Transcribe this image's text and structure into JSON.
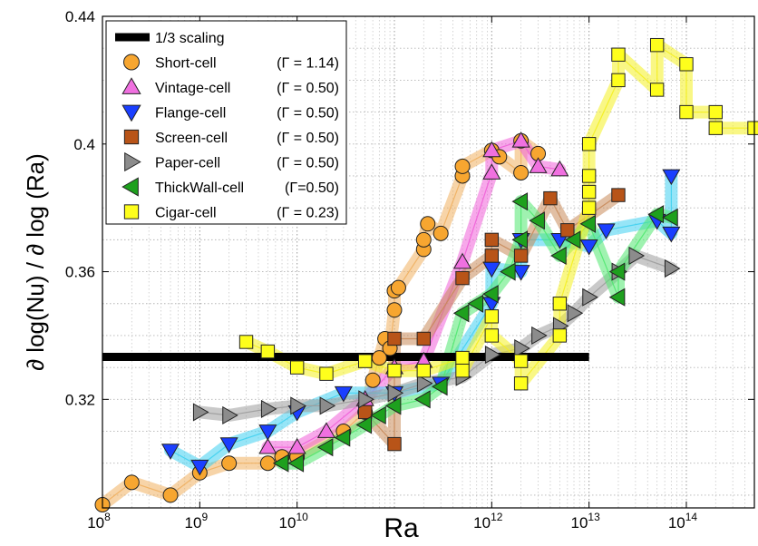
{
  "chart_data": {
    "type": "scatter",
    "xlabel": "Ra",
    "ylabel": "∂ log(Nu) / ∂ log (Ra)",
    "x_scale": "log",
    "xlim": [
      100000000.0,
      500000000000000.0
    ],
    "ylim": [
      0.286,
      0.44
    ],
    "x_ticks": [
      {
        "value": 100000000.0,
        "base": "10",
        "exp": "8"
      },
      {
        "value": 1000000000.0,
        "base": "10",
        "exp": "9"
      },
      {
        "value": 10000000000.0,
        "base": "10",
        "exp": "10"
      },
      {
        "value": 1000000000000.0,
        "base": "10",
        "exp": "12"
      },
      {
        "value": 10000000000000.0,
        "base": "10",
        "exp": "13"
      },
      {
        "value": 100000000000000.0,
        "base": "10",
        "exp": "14"
      }
    ],
    "y_ticks": [
      {
        "value": 0.32,
        "label": "0.32"
      },
      {
        "value": 0.36,
        "label": "0.36"
      },
      {
        "value": 0.4,
        "label": "0.4"
      },
      {
        "value": 0.44,
        "label": "0.44"
      }
    ],
    "grid": true,
    "legend_position": "top-left",
    "reference_line": {
      "name": "1/3 scaling",
      "y": 0.3333,
      "x_range": [
        100000000.0,
        10000000000000.0
      ],
      "color": "#000000"
    },
    "series": [
      {
        "name": "Short-cell",
        "gamma": "(Γ = 1.14)",
        "marker": "circle",
        "color": "#f7a630",
        "band_color": "#f0b060",
        "points": [
          [
            100000000.0,
            0.287
          ],
          [
            200000000.0,
            0.294
          ],
          [
            500000000.0,
            0.29
          ],
          [
            1000000000.0,
            0.297
          ],
          [
            2000000000.0,
            0.3
          ],
          [
            5000000000.0,
            0.3
          ],
          [
            7000000000.0,
            0.302
          ],
          [
            10000000000.0,
            0.302
          ],
          [
            30000000000.0,
            0.31
          ],
          [
            50000000000.0,
            0.316
          ],
          [
            60000000000.0,
            0.326
          ],
          [
            70000000000.0,
            0.333
          ],
          [
            80000000000.0,
            0.339
          ],
          [
            90000000000.0,
            0.336
          ],
          [
            100000000000.0,
            0.348
          ],
          [
            100000000000.0,
            0.354
          ],
          [
            110000000000.0,
            0.355
          ],
          [
            200000000000.0,
            0.367
          ],
          [
            200000000000.0,
            0.37
          ],
          [
            220000000000.0,
            0.375
          ],
          [
            300000000000.0,
            0.372
          ],
          [
            500000000000.0,
            0.39
          ],
          [
            500000000000.0,
            0.393
          ],
          [
            1000000000000.0,
            0.398
          ],
          [
            1200000000000.0,
            0.396
          ],
          [
            2000000000000.0,
            0.391
          ],
          [
            2000000000000.0,
            0.401
          ],
          [
            3000000000000.0,
            0.397
          ]
        ]
      },
      {
        "name": "Vintage-cell",
        "gamma": "(Γ = 0.50)",
        "marker": "triangle-up",
        "color": "#f070e0",
        "band_color": "#f060d8",
        "points": [
          [
            5000000000.0,
            0.305
          ],
          [
            10000000000.0,
            0.305
          ],
          [
            20000000000.0,
            0.31
          ],
          [
            50000000000.0,
            0.32
          ],
          [
            100000000000.0,
            0.33
          ],
          [
            200000000000.0,
            0.332
          ],
          [
            500000000000.0,
            0.363
          ],
          [
            1000000000000.0,
            0.391
          ],
          [
            1000000000000.0,
            0.398
          ],
          [
            2000000000000.0,
            0.401
          ],
          [
            3000000000000.0,
            0.393
          ],
          [
            5000000000000.0,
            0.392
          ]
        ]
      },
      {
        "name": "Flange-cell",
        "gamma": "(Γ = 0.50)",
        "marker": "triangle-down",
        "color": "#1a3fff",
        "band_color": "#40d0f0",
        "points": [
          [
            500000000.0,
            0.304
          ],
          [
            1000000000.0,
            0.299
          ],
          [
            2000000000.0,
            0.306
          ],
          [
            5000000000.0,
            0.31
          ],
          [
            10000000000.0,
            0.316
          ],
          [
            30000000000.0,
            0.322
          ],
          [
            100000000000.0,
            0.322
          ],
          [
            300000000000.0,
            0.325
          ],
          [
            1000000000000.0,
            0.35
          ],
          [
            1000000000000.0,
            0.361
          ],
          [
            2000000000000.0,
            0.36
          ],
          [
            2000000000000.0,
            0.37
          ],
          [
            5000000000000.0,
            0.37
          ],
          [
            10000000000000.0,
            0.368
          ],
          [
            15000000000000.0,
            0.373
          ],
          [
            50000000000000.0,
            0.376
          ],
          [
            70000000000000.0,
            0.372
          ],
          [
            70000000000000.0,
            0.39
          ]
        ]
      },
      {
        "name": "Screen-cell",
        "gamma": "(Γ = 0.50)",
        "marker": "square",
        "color": "#b85418",
        "band_color": "#c88a5a",
        "points": [
          [
            50000000000.0,
            0.316
          ],
          [
            100000000000.0,
            0.306
          ],
          [
            100000000000.0,
            0.339
          ],
          [
            200000000000.0,
            0.339
          ],
          [
            500000000000.0,
            0.358
          ],
          [
            1000000000000.0,
            0.365
          ],
          [
            1000000000000.0,
            0.37
          ],
          [
            2000000000000.0,
            0.365
          ],
          [
            4000000000000.0,
            0.383
          ],
          [
            6000000000000.0,
            0.373
          ],
          [
            20000000000000.0,
            0.384
          ]
        ]
      },
      {
        "name": "Paper-cell",
        "gamma": "(Γ = 0.50)",
        "marker": "triangle-right",
        "color": "#8c8c8c",
        "band_color": "#9c9c9c",
        "points": [
          [
            1000000000.0,
            0.316
          ],
          [
            2000000000.0,
            0.315
          ],
          [
            5000000000.0,
            0.317
          ],
          [
            10000000000.0,
            0.318
          ],
          [
            20000000000.0,
            0.318
          ],
          [
            50000000000.0,
            0.32
          ],
          [
            100000000000.0,
            0.322
          ],
          [
            200000000000.0,
            0.325
          ],
          [
            500000000000.0,
            0.327
          ],
          [
            1000000000000.0,
            0.334
          ],
          [
            2000000000000.0,
            0.336
          ],
          [
            3000000000000.0,
            0.34
          ],
          [
            5000000000000.0,
            0.343
          ],
          [
            7000000000000.0,
            0.347
          ],
          [
            10000000000000.0,
            0.352
          ],
          [
            20000000000000.0,
            0.36
          ],
          [
            30000000000000.0,
            0.365
          ],
          [
            70000000000000.0,
            0.361
          ]
        ]
      },
      {
        "name": "ThickWall-cell",
        "gamma": "(Γ=0.50)",
        "marker": "triangle-left",
        "color": "#1ea01e",
        "band_color": "#50e870",
        "points": [
          [
            7000000000.0,
            0.3
          ],
          [
            10000000000.0,
            0.3
          ],
          [
            20000000000.0,
            0.305
          ],
          [
            30000000000.0,
            0.308
          ],
          [
            50000000000.0,
            0.312
          ],
          [
            70000000000.0,
            0.315
          ],
          [
            100000000000.0,
            0.318
          ],
          [
            200000000000.0,
            0.32
          ],
          [
            300000000000.0,
            0.324
          ],
          [
            500000000000.0,
            0.347
          ],
          [
            700000000000.0,
            0.35
          ],
          [
            1000000000000.0,
            0.353
          ],
          [
            1500000000000.0,
            0.36
          ],
          [
            2000000000000.0,
            0.37
          ],
          [
            2000000000000.0,
            0.382
          ],
          [
            3000000000000.0,
            0.376
          ],
          [
            5000000000000.0,
            0.365
          ],
          [
            7000000000000.0,
            0.37
          ],
          [
            10000000000000.0,
            0.375
          ],
          [
            20000000000000.0,
            0.352
          ],
          [
            20000000000000.0,
            0.36
          ],
          [
            50000000000000.0,
            0.378
          ],
          [
            70000000000000.0,
            0.377
          ]
        ]
      },
      {
        "name": "Cigar-cell",
        "gamma": "(Γ = 0.23)",
        "marker": "square",
        "color": "#fefe1c",
        "band_color": "#f4f020",
        "points": [
          [
            3000000000.0,
            0.338
          ],
          [
            5000000000.0,
            0.335
          ],
          [
            10000000000.0,
            0.33
          ],
          [
            20000000000.0,
            0.328
          ],
          [
            50000000000.0,
            0.332
          ],
          [
            100000000000.0,
            0.329
          ],
          [
            200000000000.0,
            0.329
          ],
          [
            500000000000.0,
            0.333
          ],
          [
            500000000000.0,
            0.329
          ],
          [
            1000000000000.0,
            0.346
          ],
          [
            1000000000000.0,
            0.34
          ],
          [
            2000000000000.0,
            0.332
          ],
          [
            2000000000000.0,
            0.325
          ],
          [
            5000000000000.0,
            0.34
          ],
          [
            5000000000000.0,
            0.35
          ],
          [
            10000000000000.0,
            0.38
          ],
          [
            10000000000000.0,
            0.385
          ],
          [
            10000000000000.0,
            0.39
          ],
          [
            10000000000000.0,
            0.4
          ],
          [
            20000000000000.0,
            0.42
          ],
          [
            20000000000000.0,
            0.428
          ],
          [
            50000000000000.0,
            0.417
          ],
          [
            50000000000000.0,
            0.431
          ],
          [
            100000000000000.0,
            0.425
          ],
          [
            100000000000000.0,
            0.41
          ],
          [
            200000000000000.0,
            0.41
          ],
          [
            200000000000000.0,
            0.405
          ],
          [
            500000000000000.0,
            0.405
          ]
        ]
      }
    ]
  }
}
